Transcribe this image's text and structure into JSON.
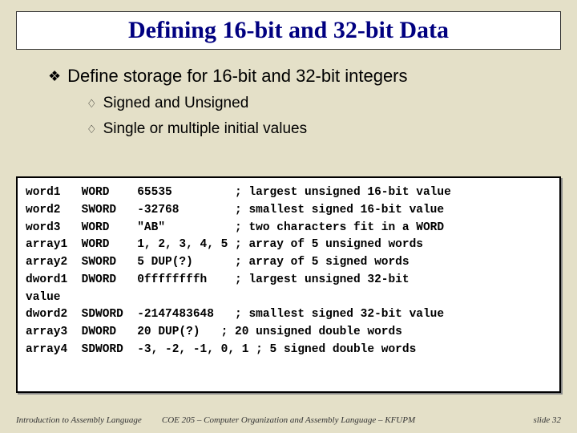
{
  "title": "Defining 16-bit and 32-bit Data",
  "bullet_main": "Define storage for 16-bit and 32-bit integers",
  "sub1": "Signed and Unsigned",
  "sub2": "Single or multiple initial values",
  "code": "word1   WORD    65535         ; largest unsigned 16-bit value\nword2   SWORD   -32768        ; smallest signed 16-bit value\nword3   WORD    \"AB\"          ; two characters fit in a WORD\narray1  WORD    1, 2, 3, 4, 5 ; array of 5 unsigned words\narray2  SWORD   5 DUP(?)      ; array of 5 signed words\ndword1  DWORD   0ffffffffh    ; largest unsigned 32-bit\nvalue\ndword2  SDWORD  -2147483648   ; smallest signed 32-bit value\narray3  DWORD   20 DUP(?)   ; 20 unsigned double words\narray4  SDWORD  -3, -2, -1, 0, 1 ; 5 signed double words",
  "footer": {
    "left": "Introduction to Assembly Language",
    "center": "COE 205 – Computer Organization and Assembly Language – KFUPM",
    "right": "slide 32"
  },
  "colors": {
    "pageBg": "#e4e0c8",
    "titleColor": "#000080",
    "boxBg": "#ffffff"
  }
}
